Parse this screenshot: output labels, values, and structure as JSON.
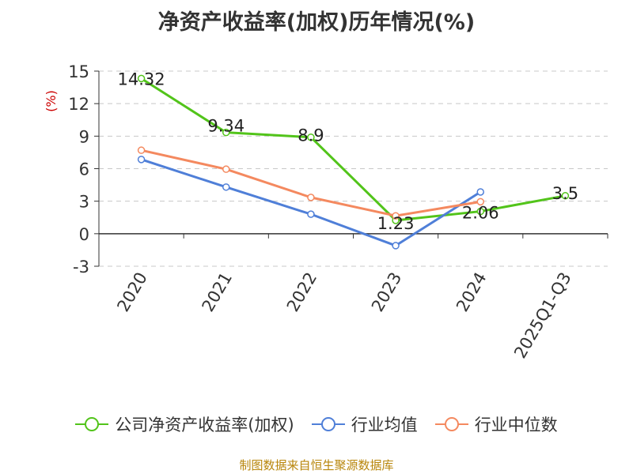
{
  "chart_data": {
    "type": "line",
    "title": "净资产收益率(加权)历年情况(%)",
    "ylabel": "(%)",
    "xlabel": "",
    "categories": [
      "2020",
      "2021",
      "2022",
      "2023",
      "2024",
      "2025Q1-Q3"
    ],
    "ylim": [
      -3,
      15
    ],
    "yticks": [
      15,
      12,
      9,
      6,
      3,
      0,
      -3
    ],
    "grid": true,
    "legend_position": "bottom",
    "series": [
      {
        "name": "公司净资产收益率(加权)",
        "color": "#52c41a",
        "values": [
          14.32,
          9.34,
          8.9,
          1.23,
          2.06,
          3.5
        ],
        "labels": [
          "14.32",
          "9.34",
          "8.9",
          "1.23",
          "2.06",
          "3.5"
        ]
      },
      {
        "name": "行业均值",
        "color": "#4f7fd8",
        "values": [
          6.85,
          4.3,
          1.8,
          -1.1,
          3.85,
          null
        ]
      },
      {
        "name": "行业中位数",
        "color": "#f4895f",
        "values": [
          7.7,
          5.95,
          3.35,
          1.65,
          2.95,
          null
        ]
      }
    ]
  },
  "footer": {
    "source": "制图数据来自恒生聚源数据库"
  }
}
